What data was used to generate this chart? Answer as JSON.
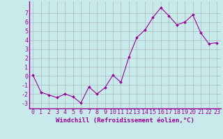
{
  "x": [
    0,
    1,
    2,
    3,
    4,
    5,
    6,
    7,
    8,
    9,
    10,
    11,
    12,
    13,
    14,
    15,
    16,
    17,
    18,
    19,
    20,
    21,
    22,
    23
  ],
  "y": [
    0.1,
    -1.8,
    -2.1,
    -2.4,
    -2.0,
    -2.3,
    -3.0,
    -1.2,
    -2.0,
    -1.3,
    0.1,
    -0.7,
    2.1,
    4.3,
    5.1,
    6.5,
    7.6,
    6.7,
    5.7,
    6.0,
    6.8,
    4.8,
    3.6,
    3.7
  ],
  "line_color": "#990099",
  "marker": "D",
  "marker_size": 1.8,
  "linewidth": 0.8,
  "bg_color": "#c8eaea",
  "grid_color": "#aabbbb",
  "xlabel": "Windchill (Refroidissement éolien,°C)",
  "xlabel_fontsize": 6.5,
  "tick_fontsize": 6,
  "xlim": [
    -0.5,
    23.5
  ],
  "ylim": [
    -3.6,
    8.3
  ],
  "yticks": [
    -3,
    -2,
    -1,
    0,
    1,
    2,
    3,
    4,
    5,
    6,
    7
  ],
  "xticks": [
    0,
    1,
    2,
    3,
    4,
    5,
    6,
    7,
    8,
    9,
    10,
    11,
    12,
    13,
    14,
    15,
    16,
    17,
    18,
    19,
    20,
    21,
    22,
    23
  ],
  "tick_color": "#990099",
  "label_color": "#990099",
  "spine_color": "#990099"
}
